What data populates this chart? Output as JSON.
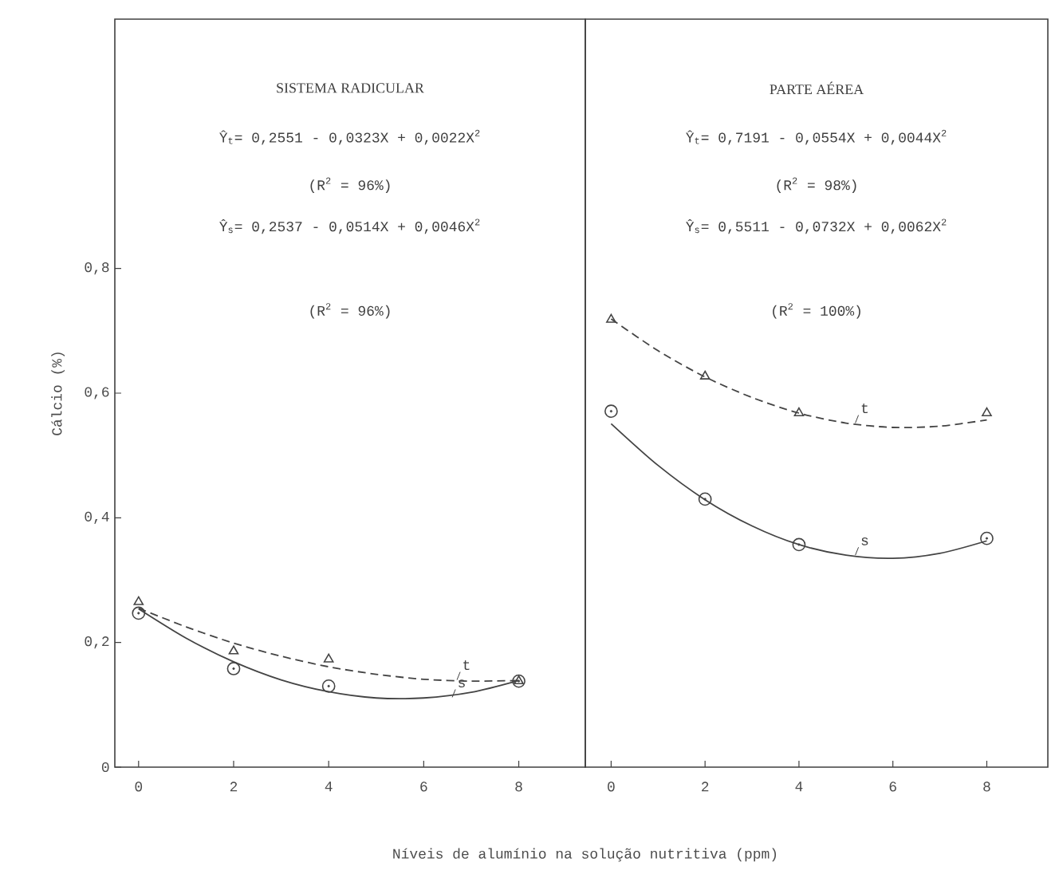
{
  "chart_data": [
    {
      "type": "scatter",
      "title": "SISTEMA RADICULAR",
      "xlabel": "Níveis de alumínio na solução nutritiva (ppm)",
      "ylabel": "Cálcio (%)",
      "xlim": [
        -0.5,
        9.4
      ],
      "ylim": [
        0,
        1.2
      ],
      "xticks": [
        0,
        2,
        4,
        6,
        8
      ],
      "yticks": [
        0,
        {
          "value": 0.2,
          "label": "0,2"
        },
        {
          "value": 0.4,
          "label": "0,4"
        },
        {
          "value": 0.6,
          "label": "0,6"
        },
        {
          "value": 0.8,
          "label": "0,8"
        }
      ],
      "grid": false,
      "annotations": [
        "Ŷ$_{t}$= 0,2551 - 0,0323X + 0,0022X$^{2}$",
        "(R$^{2}$ = 96%)",
        "Ŷ$_{s}$= 0,2537 - 0,0514X + 0,0046X$^{2}$",
        "(R$^{2}$ = 96%)",
        {
          "text": "t",
          "x": 6.7,
          "y": 0.14
        },
        {
          "text": "s",
          "x": 6.6,
          "y": 0.112
        }
      ],
      "series": [
        {
          "marker": "triangle",
          "color": "#444444",
          "x": [
            0,
            2,
            4,
            8
          ],
          "values": [
            0.265,
            0.186,
            0.173,
            0.138
          ]
        },
        {
          "marker": "circle",
          "color": "#444444",
          "x": [
            0,
            2,
            4,
            8
          ],
          "values": [
            0.247,
            0.158,
            0.13,
            0.138
          ]
        },
        {
          "type": "line",
          "marker": "none",
          "line_style": "dashed",
          "color": "#444444",
          "x": [
            0,
            1,
            2,
            3,
            4,
            5,
            6,
            7,
            8
          ],
          "values": [
            0.255,
            0.225,
            0.199,
            0.178,
            0.161,
            0.149,
            0.141,
            0.138,
            0.139
          ]
        },
        {
          "type": "line",
          "marker": "none",
          "line_style": "solid",
          "color": "#444444",
          "x": [
            0,
            1,
            2,
            3,
            4,
            5,
            6,
            7,
            8
          ],
          "values": [
            0.254,
            0.207,
            0.169,
            0.14,
            0.121,
            0.111,
            0.111,
            0.12,
            0.139
          ]
        }
      ]
    },
    {
      "type": "scatter",
      "title": "PARTE AÉREA",
      "xlim": [
        -0.55,
        9.3
      ],
      "ylim": [
        0,
        1.2
      ],
      "xticks": [
        0,
        2,
        4,
        6,
        8
      ],
      "tick_labels": "x",
      "grid": false,
      "annotations": [
        "Ŷ$_{t}$= 0,7191 - 0,0554X + 0,0044X$^{2}$",
        "(R$^{2}$ = 98%)",
        "Ŷ$_{s}$= 0,5511 - 0,0732X + 0,0062X$^{2}$",
        "(R$^{2}$ = 100%)",
        {
          "text": "t",
          "x": 5.2,
          "y": 0.552
        },
        {
          "text": "s",
          "x": 5.2,
          "y": 0.34
        }
      ],
      "series": [
        {
          "marker": "triangle",
          "color": "#444444",
          "x": [
            0,
            2,
            4,
            8
          ],
          "values": [
            0.718,
            0.627,
            0.568,
            0.568
          ]
        },
        {
          "marker": "circle",
          "color": "#444444",
          "x": [
            0,
            2,
            4,
            8
          ],
          "values": [
            0.571,
            0.43,
            0.357,
            0.367
          ]
        },
        {
          "type": "line",
          "marker": "none",
          "line_style": "dashed",
          "color": "#444444",
          "x": [
            0,
            1,
            2,
            3,
            4,
            5,
            6,
            7,
            8
          ],
          "values": [
            0.719,
            0.668,
            0.626,
            0.593,
            0.568,
            0.552,
            0.545,
            0.547,
            0.557
          ]
        },
        {
          "type": "line",
          "marker": "none",
          "line_style": "solid",
          "color": "#444444",
          "x": [
            0,
            1,
            2,
            3,
            4,
            5,
            6,
            7,
            8
          ],
          "values": [
            0.551,
            0.484,
            0.429,
            0.387,
            0.357,
            0.34,
            0.335,
            0.343,
            0.363
          ]
        }
      ]
    }
  ]
}
